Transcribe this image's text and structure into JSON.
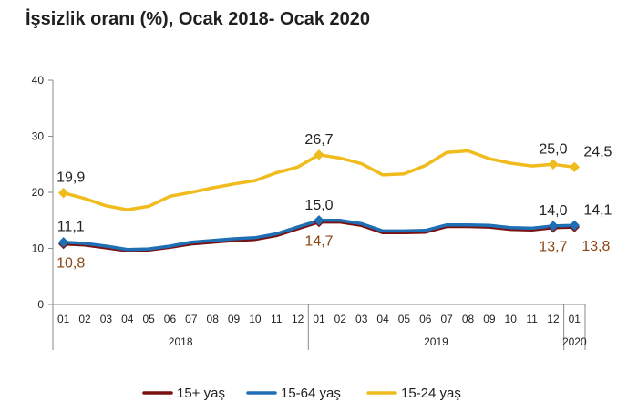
{
  "chart_data": {
    "type": "line",
    "title": "İşsizlik oranı (%), Ocak 2018- Ocak 2020",
    "xlabel": "",
    "ylabel": "",
    "ylim": [
      0,
      40
    ],
    "yticks": [
      "0",
      "10",
      "20",
      "30",
      "40"
    ],
    "categories": [
      "01",
      "02",
      "03",
      "04",
      "05",
      "06",
      "07",
      "08",
      "09",
      "10",
      "11",
      "12",
      "01",
      "02",
      "03",
      "04",
      "05",
      "06",
      "07",
      "08",
      "09",
      "10",
      "11",
      "12",
      "01"
    ],
    "year_groups": [
      {
        "label": "2018",
        "start": 0,
        "end": 11
      },
      {
        "label": "2019",
        "start": 12,
        "end": 23
      },
      {
        "label": "2020",
        "start": 24,
        "end": 24
      }
    ],
    "series": [
      {
        "name": "15+ yaş",
        "color": "#7b1010",
        "values": [
          10.8,
          10.6,
          10.1,
          9.6,
          9.7,
          10.2,
          10.8,
          11.1,
          11.4,
          11.6,
          12.3,
          13.5,
          14.7,
          14.7,
          14.1,
          12.8,
          12.8,
          12.9,
          13.9,
          13.9,
          13.8,
          13.4,
          13.3,
          13.7,
          13.8
        ]
      },
      {
        "name": "15-64 yaş",
        "color": "#1f6fb5",
        "values": [
          11.1,
          10.9,
          10.4,
          9.8,
          9.9,
          10.4,
          11.1,
          11.4,
          11.7,
          11.9,
          12.6,
          13.8,
          15.0,
          15.0,
          14.4,
          13.1,
          13.1,
          13.2,
          14.2,
          14.2,
          14.1,
          13.7,
          13.6,
          14.0,
          14.1
        ]
      },
      {
        "name": "15-24 yaş",
        "color": "#f0bb1c",
        "values": [
          19.9,
          18.9,
          17.6,
          16.9,
          17.5,
          19.3,
          20.0,
          20.8,
          21.5,
          22.1,
          23.5,
          24.5,
          26.7,
          26.1,
          25.1,
          23.1,
          23.3,
          24.8,
          27.1,
          27.4,
          26.0,
          25.2,
          24.7,
          25.0,
          24.5
        ]
      }
    ],
    "annotations": [
      {
        "series": 2,
        "index": 0,
        "text": "19,9",
        "color": "#222222",
        "pos": "above"
      },
      {
        "series": 2,
        "index": 12,
        "text": "26,7",
        "color": "#222222",
        "pos": "above"
      },
      {
        "series": 2,
        "index": 23,
        "text": "25,0",
        "color": "#222222",
        "pos": "above"
      },
      {
        "series": 2,
        "index": 24,
        "text": "24,5",
        "color": "#222222",
        "pos": "above-right"
      },
      {
        "series": 1,
        "index": 0,
        "text": "11,1",
        "color": "#222222",
        "pos": "above"
      },
      {
        "series": 1,
        "index": 12,
        "text": "15,0",
        "color": "#222222",
        "pos": "above"
      },
      {
        "series": 1,
        "index": 23,
        "text": "14,0",
        "color": "#222222",
        "pos": "above"
      },
      {
        "series": 1,
        "index": 24,
        "text": "14,1",
        "color": "#222222",
        "pos": "above-right"
      },
      {
        "series": 0,
        "index": 0,
        "text": "10,8",
        "color": "#8b4513",
        "pos": "below"
      },
      {
        "series": 0,
        "index": 12,
        "text": "14,7",
        "color": "#8b4513",
        "pos": "below"
      },
      {
        "series": 0,
        "index": 23,
        "text": "13,7",
        "color": "#8b4513",
        "pos": "below"
      },
      {
        "series": 0,
        "index": 24,
        "text": "13,8",
        "color": "#8b4513",
        "pos": "below-right"
      }
    ],
    "marker_indices": [
      0,
      12,
      23,
      24
    ],
    "grid": false,
    "legend_position": "bottom"
  }
}
